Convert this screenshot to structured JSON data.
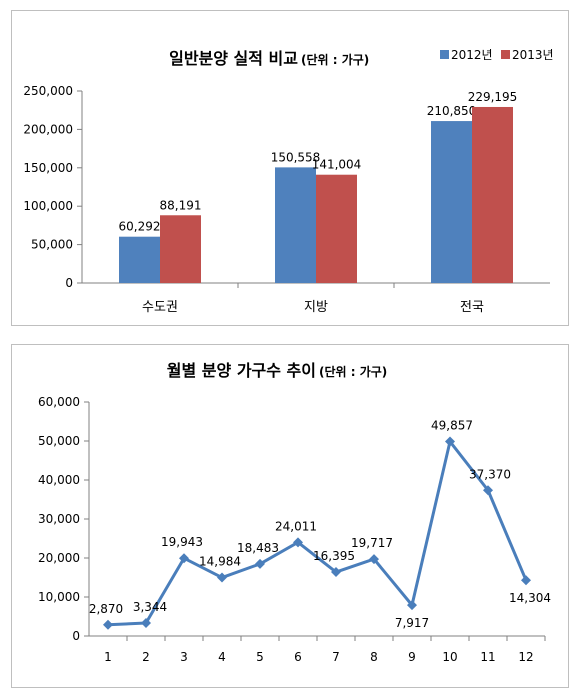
{
  "chart_data": [
    {
      "type": "bar",
      "title": "일반분양 실적 비교",
      "title_unit": "(단위 : 가구)",
      "categories": [
        "수도권",
        "지방",
        "전국"
      ],
      "series": [
        {
          "name": "2012년",
          "values": [
            60292,
            150558,
            210850
          ],
          "labels": [
            "60,292",
            "150,558",
            "210,850"
          ],
          "color": "#4f81bd"
        },
        {
          "name": "2013년",
          "values": [
            88191,
            141004,
            229195
          ],
          "labels": [
            "88,191",
            "141,004",
            "229,195"
          ],
          "color": "#c0504d"
        }
      ],
      "ylim": [
        0,
        250000
      ],
      "yticks": [
        0,
        50000,
        100000,
        150000,
        200000,
        250000
      ],
      "ytick_labels": [
        "0",
        "50,000",
        "100,000",
        "150,000",
        "200,000",
        "250,000"
      ],
      "legend": "top-right",
      "grid": false
    },
    {
      "type": "line",
      "title": "월별 분양 가구수 추이",
      "title_unit": "(단위 : 가구)",
      "x": [
        "1",
        "2",
        "3",
        "4",
        "5",
        "6",
        "7",
        "8",
        "9",
        "10",
        "11",
        "12"
      ],
      "series": [
        {
          "values": [
            2870,
            3344,
            19943,
            14984,
            18483,
            24011,
            16395,
            19717,
            7917,
            49857,
            37370,
            14304
          ],
          "labels": [
            "2,870",
            "3,344",
            "19,943",
            "14,984",
            "18,483",
            "24,011",
            "16,395",
            "19,717",
            "7,917",
            "49,857",
            "37,370",
            "14,304"
          ],
          "color": "#4a7ebb"
        }
      ],
      "ylim": [
        0,
        60000
      ],
      "yticks": [
        0,
        10000,
        20000,
        30000,
        40000,
        50000,
        60000
      ],
      "ytick_labels": [
        "0",
        "10,000",
        "20,000",
        "30,000",
        "40,000",
        "50,000",
        "60,000"
      ],
      "grid": false
    }
  ]
}
